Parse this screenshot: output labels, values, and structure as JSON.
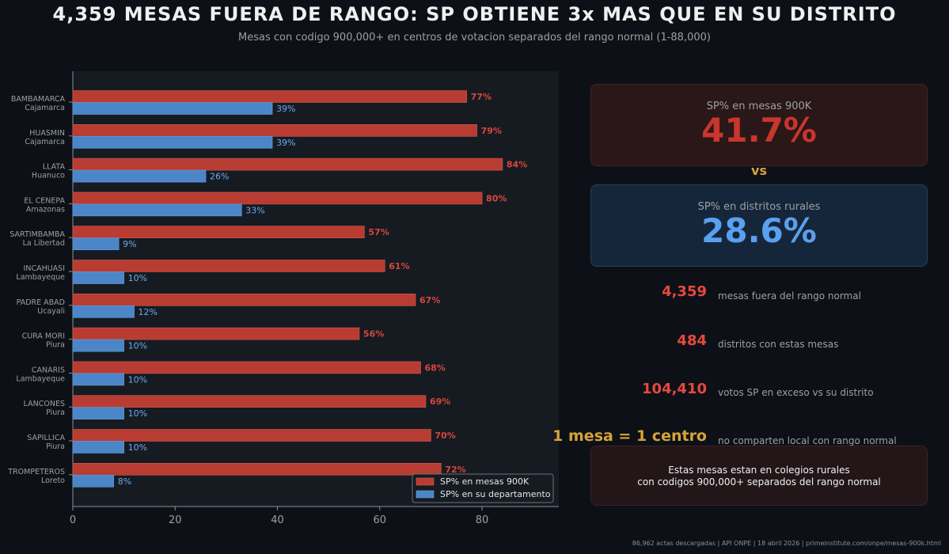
{
  "title": "4,359 MESAS FUERA DE RANGO: SP OBTIENE 3x MAS QUE EN SU DISTRITO",
  "subtitle": "Mesas con codigo 900,000+ en centros de votacion separados del rango normal (1-88,000)",
  "colors": {
    "red": "#b83c32",
    "blue": "#4a86c8",
    "red_text": "#d8473a",
    "blue_text": "#6aaaf0",
    "gold": "#d6a33a"
  },
  "chart_data": {
    "type": "bar",
    "orientation": "horizontal",
    "categories": [
      {
        "name": "BAMBAMARCA",
        "region": "Cajamarca"
      },
      {
        "name": "HUASMIN",
        "region": "Cajamarca"
      },
      {
        "name": "LLATA",
        "region": "Huanuco"
      },
      {
        "name": "EL CENEPA",
        "region": "Amazonas"
      },
      {
        "name": "SARTIMBAMBA",
        "region": "La Libertad"
      },
      {
        "name": "INCAHUASI",
        "region": "Lambayeque"
      },
      {
        "name": "PADRE ABAD",
        "region": "Ucayali"
      },
      {
        "name": "CURA MORI",
        "region": "Piura"
      },
      {
        "name": "CANARIS",
        "region": "Lambayeque"
      },
      {
        "name": "LANCONES",
        "region": "Piura"
      },
      {
        "name": "SAPILLICA",
        "region": "Piura"
      },
      {
        "name": "TROMPETEROS",
        "region": "Loreto"
      }
    ],
    "series": [
      {
        "name": "SP% en mesas 900K",
        "values": [
          77,
          79,
          84,
          80,
          57,
          61,
          67,
          56,
          68,
          69,
          70,
          72
        ],
        "labels": [
          "77%",
          "79%",
          "84%",
          "80%",
          "57%",
          "61%",
          "67%",
          "56%",
          "68%",
          "69%",
          "70%",
          "72%"
        ]
      },
      {
        "name": "SP% en su departamento",
        "values": [
          39,
          39,
          26,
          33,
          9,
          10,
          12,
          10,
          10,
          10,
          10,
          8
        ],
        "labels": [
          "39%",
          "39%",
          "26%",
          "33%",
          "9%",
          "10%",
          "12%",
          "10%",
          "10%",
          "10%",
          "10%",
          "8%"
        ]
      }
    ],
    "xlim": [
      0,
      95
    ],
    "xticks": [
      0,
      20,
      40,
      60,
      80
    ],
    "legend": "bottom-right"
  },
  "cards": {
    "red": {
      "label": "SP% en mesas 900K",
      "value": "41.7%"
    },
    "vs": "vs",
    "blue": {
      "label": "SP% en distritos rurales",
      "value": "28.6%"
    }
  },
  "stats": [
    {
      "value": "4,359",
      "label": "mesas fuera del rango normal"
    },
    {
      "value": "484",
      "label": "distritos con estas mesas"
    },
    {
      "value": "104,410",
      "label": "votos SP en exceso vs su distrito"
    },
    {
      "value": "1 mesa = 1 centro",
      "label": "no comparten local con rango normal"
    }
  ],
  "note": {
    "line1": "Estas mesas estan en colegios rurales",
    "line2": "con codigos 900,000+ separados del rango normal"
  },
  "footer": "86,962 actas descargadas | API ONPE | 18 abril 2026 | primeinstitute.com/onpe/mesas-900k.html"
}
